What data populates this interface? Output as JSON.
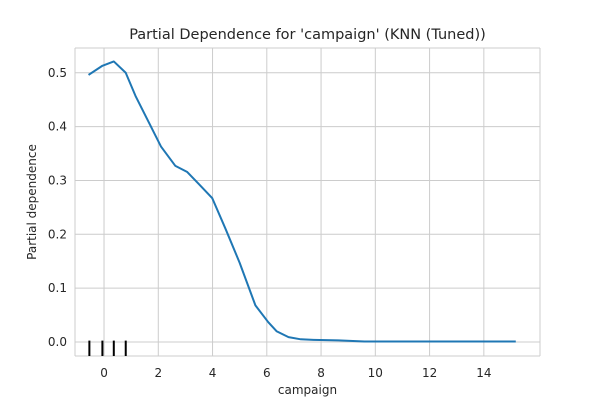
{
  "chart_data": {
    "type": "line",
    "title": "Partial Dependence for 'campaign' (KNN (Tuned))",
    "xlabel": "campaign",
    "ylabel": "Partial dependence",
    "xlim": [
      -1.07,
      16.07
    ],
    "ylim": [
      -0.026,
      0.546
    ],
    "xticks": [
      0,
      2,
      4,
      6,
      8,
      10,
      12,
      14
    ],
    "yticks": [
      0.0,
      0.1,
      0.2,
      0.3,
      0.4,
      0.5
    ],
    "ytick_labels": [
      "0.0",
      "0.1",
      "0.2",
      "0.3",
      "0.4",
      "0.5"
    ],
    "grid": true,
    "series": [
      {
        "color": "#1f77b4",
        "x": [
          -0.54,
          -0.06,
          0.36,
          0.8,
          1.16,
          1.77,
          2.1,
          2.63,
          3.06,
          3.5,
          3.99,
          4.48,
          5.0,
          5.58,
          6.05,
          6.36,
          6.8,
          7.25,
          7.72,
          8.64,
          9.6,
          15.14
        ],
        "y": [
          0.497,
          0.513,
          0.521,
          0.5,
          0.457,
          0.396,
          0.363,
          0.327,
          0.316,
          0.293,
          0.267,
          0.21,
          0.147,
          0.068,
          0.037,
          0.02,
          0.009,
          0.005,
          0.004,
          0.003,
          0.001,
          0.001
        ]
      }
    ],
    "rug": {
      "color": "#000000",
      "x": [
        -0.54,
        -0.06,
        0.36,
        0.8
      ]
    }
  }
}
